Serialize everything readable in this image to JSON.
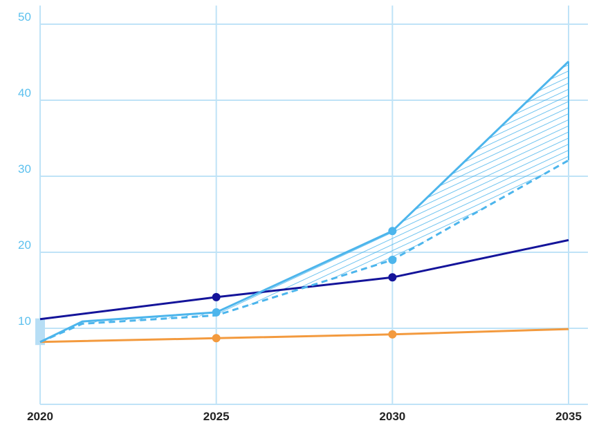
{
  "chart_data": {
    "type": "line",
    "title": "",
    "xlabel": "",
    "ylabel": "",
    "xlim": [
      2020,
      2035
    ],
    "ylim": [
      0,
      50
    ],
    "grid": true,
    "legend": "none",
    "x_ticks": [
      "2020",
      "2025",
      "2030",
      "2035"
    ],
    "y_ticks": [
      "10",
      "20",
      "30",
      "40",
      "50"
    ],
    "series": [
      {
        "color": "#14149a",
        "style": "solid",
        "x": [
          2020,
          2025,
          2030,
          2035
        ],
        "y": [
          11.2,
          14.1,
          16.7,
          21.6
        ],
        "markers": [
          2025,
          2030
        ]
      },
      {
        "color": "#f39a3e",
        "style": "solid",
        "x": [
          2020,
          2025,
          2030,
          2035
        ],
        "y": [
          8.2,
          8.7,
          9.2,
          9.9
        ],
        "markers": [
          2025,
          2030
        ]
      },
      {
        "color": "#4cb5ec",
        "style": "solid",
        "x": [
          2020,
          2021.2,
          2025,
          2030,
          2035
        ],
        "y": [
          8.2,
          10.9,
          12.1,
          22.8,
          45.1
        ],
        "markers": [
          2025,
          2030
        ]
      },
      {
        "color": "#4cb5ec",
        "style": "dashed",
        "x": [
          2020,
          2021.2,
          2025,
          2030,
          2035
        ],
        "y": [
          8.2,
          10.6,
          11.7,
          19.0,
          32.1
        ],
        "markers": [
          2030
        ]
      }
    ],
    "shaded_band": {
      "between": [
        2,
        3
      ],
      "pattern": "hatched",
      "color": "#4cb5ec"
    },
    "start_range": {
      "x": 2020,
      "y": [
        7.8,
        11.3
      ],
      "color": "#b7def5"
    }
  }
}
